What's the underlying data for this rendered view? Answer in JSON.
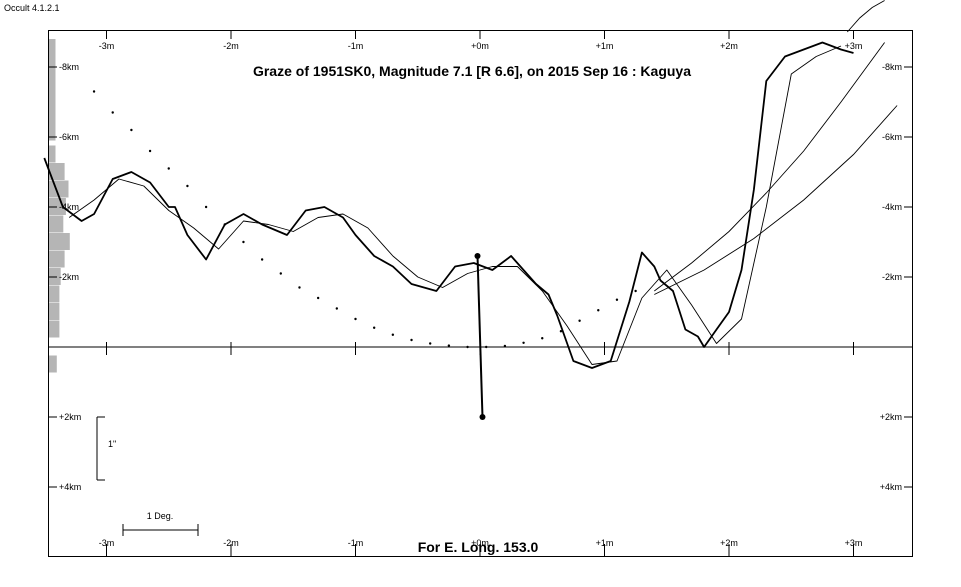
{
  "app": {
    "version_label": "Occult 4.1.2.1"
  },
  "chart_data": {
    "type": "line",
    "title": "Graze of  1951SK0,  Magnitude 7.1 [R 6.6],  on 2015 Sep 16  :  Kaguya",
    "footer": "For E. Long. 153.0",
    "x_unit": "minutes",
    "y_unit": "km",
    "xlim": [
      -3.5,
      3.5
    ],
    "ylim": [
      -9,
      6
    ],
    "x_ticks": [
      {
        "value": -3,
        "label": "-3m"
      },
      {
        "value": -2,
        "label": "-2m"
      },
      {
        "value": -1,
        "label": "-1m"
      },
      {
        "value": 0,
        "label": "+0m"
      },
      {
        "value": 1,
        "label": "+1m"
      },
      {
        "value": 2,
        "label": "+2m"
      },
      {
        "value": 3,
        "label": "+3m"
      }
    ],
    "y_ticks_left": [
      {
        "value": -8,
        "label": "-8km"
      },
      {
        "value": -6,
        "label": "-6km"
      },
      {
        "value": -4,
        "label": "-4km"
      },
      {
        "value": -2,
        "label": "-2km"
      },
      {
        "value": 2,
        "label": "+2km"
      },
      {
        "value": 4,
        "label": "+4km"
      }
    ],
    "y_ticks_right": [
      {
        "value": -8,
        "label": "-8km"
      },
      {
        "value": -6,
        "label": "-6km"
      },
      {
        "value": -4,
        "label": "-4km"
      },
      {
        "value": -2,
        "label": "-2km"
      },
      {
        "value": 2,
        "label": "+2km"
      },
      {
        "value": 4,
        "label": "+4km"
      }
    ],
    "scale_bars": {
      "arcsec_label": "1\"",
      "degree_label": "1 Deg."
    },
    "series": [
      {
        "style": "thick",
        "x": [
          -3.5,
          -3.35,
          -3.2,
          -3.1,
          -2.95,
          -2.8,
          -2.65,
          -2.5,
          -2.45,
          -2.35,
          -2.2,
          -2.05,
          -1.9,
          -1.75,
          -1.55,
          -1.4,
          -1.25,
          -1.1,
          -1.0,
          -0.85,
          -0.7,
          -0.55,
          -0.35,
          -0.2,
          -0.05,
          0.1,
          0.25,
          0.45,
          0.55,
          0.62,
          0.75,
          0.9,
          1.05,
          1.2,
          1.3,
          1.4,
          1.45,
          1.55,
          1.65,
          1.75,
          1.8,
          1.9,
          2.0,
          2.1,
          2.2,
          2.3,
          2.45,
          2.6,
          2.75,
          2.9,
          3.0
        ],
        "y": [
          -5.4,
          -4.0,
          -3.6,
          -3.8,
          -4.8,
          -5.0,
          -4.7,
          -4.0,
          -4.0,
          -3.2,
          -2.5,
          -3.5,
          -3.8,
          -3.5,
          -3.2,
          -3.9,
          -4.0,
          -3.7,
          -3.2,
          -2.6,
          -2.3,
          -1.8,
          -1.6,
          -2.3,
          -2.4,
          -2.2,
          -2.6,
          -1.8,
          -1.5,
          -0.9,
          0.4,
          0.6,
          0.4,
          -1.3,
          -2.7,
          -2.3,
          -1.9,
          -1.6,
          -0.5,
          -0.3,
          0.0,
          -0.5,
          -1.0,
          -2.2,
          -4.5,
          -7.6,
          -8.3,
          -8.5,
          -8.7,
          -8.5,
          -8.4
        ]
      },
      {
        "style": "thin",
        "x": [
          -3.3,
          -3.1,
          -2.9,
          -2.7,
          -2.5,
          -2.3,
          -2.1,
          -1.9,
          -1.7,
          -1.5,
          -1.3,
          -1.1,
          -0.9,
          -0.7,
          -0.5,
          -0.3,
          -0.1,
          0.1,
          0.3,
          0.5,
          0.7,
          0.9,
          1.1,
          1.3,
          1.5,
          1.7,
          1.9,
          2.1,
          2.3,
          2.5,
          2.7,
          2.9
        ],
        "y": [
          -3.7,
          -4.2,
          -4.8,
          -4.6,
          -3.9,
          -3.4,
          -2.8,
          -3.6,
          -3.5,
          -3.3,
          -3.7,
          -3.8,
          -3.4,
          -2.6,
          -2.0,
          -1.7,
          -2.1,
          -2.3,
          -2.3,
          -1.6,
          -0.6,
          0.5,
          0.4,
          -1.4,
          -2.2,
          -1.2,
          -0.1,
          -0.8,
          -4.0,
          -7.8,
          -8.3,
          -8.6
        ]
      }
    ],
    "limb_dots": {
      "x": [
        -3.1,
        -2.95,
        -2.8,
        -2.65,
        -2.5,
        -2.35,
        -2.2,
        -2.05,
        -1.9,
        -1.75,
        -1.6,
        -1.45,
        -1.3,
        -1.15,
        -1.0,
        -0.85,
        -0.7,
        -0.55,
        -0.4,
        -0.25,
        -0.1,
        0.05,
        0.2,
        0.35,
        0.5,
        0.65,
        0.8,
        0.95,
        1.1,
        1.25
      ],
      "y": [
        -7.3,
        -6.7,
        -6.2,
        -5.6,
        -5.1,
        -4.6,
        -4.0,
        -3.5,
        -3.0,
        -2.5,
        -2.1,
        -1.7,
        -1.4,
        -1.1,
        -0.8,
        -0.55,
        -0.35,
        -0.2,
        -0.1,
        -0.04,
        0.0,
        0.0,
        -0.03,
        -0.12,
        -0.25,
        -0.45,
        -0.75,
        -1.05,
        -1.35,
        -1.6
      ]
    },
    "arcs": [
      {
        "x": [
          1.4,
          1.7,
          2.0,
          2.3,
          2.6,
          2.9,
          3.25
        ],
        "y": [
          -1.6,
          -2.4,
          -3.3,
          -4.4,
          -5.6,
          -7.0,
          -8.7
        ]
      },
      {
        "x": [
          1.4,
          1.8,
          2.2,
          2.6,
          3.0,
          3.35
        ],
        "y": [
          -1.5,
          -2.2,
          -3.1,
          -4.2,
          -5.5,
          -6.9
        ]
      }
    ],
    "topright_arc": {
      "x": [
        2.95,
        3.05,
        3.15,
        3.25
      ],
      "y": [
        -9.0,
        -9.4,
        -9.7,
        -9.9
      ]
    },
    "profile_histogram": {
      "km": [
        -5.5,
        -5.0,
        -4.5,
        -4.0,
        -3.5,
        -3.0,
        -2.5,
        -2.0,
        -1.5,
        -1.0,
        -0.5,
        0.5
      ],
      "length": [
        0.05,
        0.12,
        0.15,
        0.13,
        0.11,
        0.16,
        0.12,
        0.09,
        0.08,
        0.08,
        0.08,
        0.06
      ]
    },
    "histogram_upper_strip": {
      "from_km": -8.8,
      "to_km": -5.9,
      "length": 0.05
    },
    "highlighted_point": {
      "upper": {
        "x": -0.02,
        "y": -2.6
      },
      "lower": {
        "x": 0.02,
        "y": 2.0
      }
    },
    "reference_line_km": 0,
    "scale_bar_arcsec_km": [
      2.0,
      3.8
    ]
  }
}
